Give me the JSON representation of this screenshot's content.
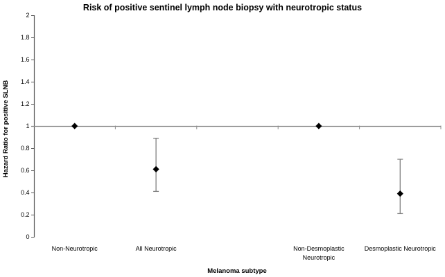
{
  "chart_data": {
    "type": "scatter",
    "title": "Risk of positive sentinel lymph node biopsy with neurotropic status",
    "xlabel": "Melanoma subtype",
    "ylabel": "Hazard Ratio for positive SLNB",
    "ylim": [
      0,
      2
    ],
    "ytick_step": 0.2,
    "yticks": [
      {
        "label": "2",
        "value": 2.0
      },
      {
        "label": "1.8",
        "value": 1.8
      },
      {
        "label": "1.6",
        "value": 1.6
      },
      {
        "label": "1.4",
        "value": 1.4
      },
      {
        "label": "1.2",
        "value": 1.2
      },
      {
        "label": "1",
        "value": 1.0
      },
      {
        "label": "0.8",
        "value": 0.8
      },
      {
        "label": "0.6",
        "value": 0.6
      },
      {
        "label": "0.4",
        "value": 0.4
      },
      {
        "label": "0.2",
        "value": 0.2
      },
      {
        "label": "0",
        "value": 0.0
      }
    ],
    "x_axis_crosses_at": 1,
    "grid": false,
    "legend": null,
    "marker": "diamond",
    "categories": [
      "Non-Neurotropic",
      "All Neurotropic",
      "",
      "Non-Desmoplastic Neurotropic",
      "Desmoplastic Neurotropic"
    ],
    "category_label_lines": [
      [
        "Non-Neurotropic"
      ],
      [
        "All Neurotropic"
      ],
      [],
      [
        "Non-Desmoplastic",
        "Neurotropic"
      ],
      [
        "Desmoplastic Neurotropic"
      ]
    ],
    "points": [
      {
        "category": "Non-Neurotropic",
        "slot": 0,
        "hr": 1.0,
        "ci_low": null,
        "ci_high": null
      },
      {
        "category": "All Neurotropic",
        "slot": 1,
        "hr": 0.61,
        "ci_low": 0.41,
        "ci_high": 0.89
      },
      {
        "category": "Non-Desmoplastic Neurotropic",
        "slot": 3,
        "hr": 1.0,
        "ci_low": null,
        "ci_high": null
      },
      {
        "category": "Desmoplastic Neurotropic",
        "slot": 4,
        "hr": 0.39,
        "ci_low": 0.21,
        "ci_high": 0.7
      }
    ],
    "colors": {
      "marker": "#000000",
      "error_bar": "#808080",
      "y_axis": "#595959",
      "x_axis_line": "#8c8c8c",
      "text": "#000000",
      "background": "#ffffff"
    }
  }
}
